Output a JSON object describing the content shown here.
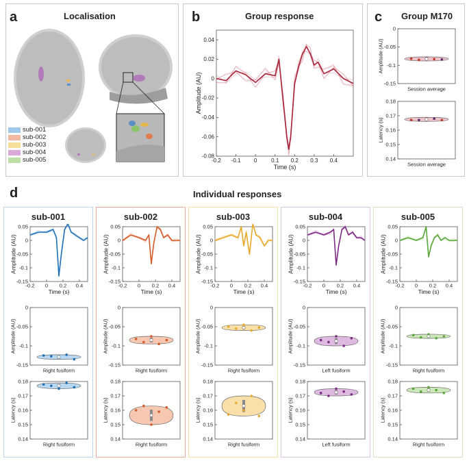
{
  "panels": {
    "a": {
      "letter": "a",
      "title": "Localisation"
    },
    "b": {
      "letter": "b",
      "title": "Group response"
    },
    "c": {
      "letter": "c",
      "title": "Group M170"
    },
    "d": {
      "letter": "d",
      "title": "Individual responses"
    }
  },
  "legend": [
    {
      "label": "sub-001",
      "color": "#9fc8ea"
    },
    {
      "label": "sub-002",
      "color": "#f2b9a2"
    },
    {
      "label": "sub-003",
      "color": "#f5df9a"
    },
    {
      "label": "sub-004",
      "color": "#d8a9d9"
    },
    {
      "label": "sub-005",
      "color": "#bde0a6"
    }
  ],
  "chart_data": [
    {
      "id": "group-response",
      "type": "line",
      "title": "Group response",
      "xlabel": "Time (s)",
      "ylabel": "Amplitude (AU)",
      "xlim": [
        -0.2,
        0.5
      ],
      "ylim": [
        -0.08,
        0.05
      ],
      "xticks": [
        "-0.2",
        "-0.1",
        "0",
        "0.1",
        "0.2",
        "0.3",
        "0.4"
      ],
      "yticks": [
        "-0.08",
        "-0.06",
        "-0.04",
        "-0.02",
        "0",
        "0.02",
        "0.04"
      ],
      "color": "#a8243a",
      "x": [
        -0.2,
        -0.15,
        -0.1,
        -0.05,
        0,
        0.05,
        0.1,
        0.12,
        0.14,
        0.16,
        0.17,
        0.18,
        0.2,
        0.22,
        0.24,
        0.26,
        0.28,
        0.3,
        0.32,
        0.35,
        0.4,
        0.45,
        0.5
      ],
      "values": [
        0.0,
        -0.002,
        0.008,
        0.004,
        -0.004,
        0.005,
        0.003,
        0.02,
        -0.02,
        -0.06,
        -0.073,
        -0.06,
        -0.005,
        0.012,
        0.025,
        0.033,
        0.026,
        0.014,
        0.017,
        0.005,
        0.01,
        0.0,
        -0.005
      ]
    },
    {
      "id": "group-amplitude",
      "type": "scatter",
      "xlabel": "Session average",
      "ylabel": "Amplitude (AU)",
      "ylim": [
        -0.15,
        0
      ],
      "yticks": [
        "0",
        "-0.05",
        "-0.1",
        "-0.15"
      ],
      "points": [
        -0.082,
        -0.085,
        -0.08,
        -0.083,
        -0.084
      ],
      "point_colors": [
        "#c0392b",
        "#c0392b",
        "#5b2c6f",
        "#c0392b",
        "#5b2c6f"
      ]
    },
    {
      "id": "group-latency",
      "type": "scatter",
      "xlabel": "Session average",
      "ylabel": "Latency (s)",
      "ylim": [
        0.14,
        0.18
      ],
      "yticks": [
        "0.18",
        "0.17",
        "0.16",
        "0.15",
        "0.14"
      ],
      "points": [
        0.167,
        0.167,
        0.168,
        0.168,
        0.167
      ],
      "point_colors": [
        "#c0392b",
        "#5b2c6f",
        "#c0392b",
        "#5b2c6f",
        "#c0392b"
      ]
    }
  ],
  "subjects": [
    {
      "name": "sub-001",
      "color": "#1f6fb5",
      "light": "#a6cdec",
      "border": "#bcd8f0",
      "region": "Right fusiform",
      "x": [
        -0.2,
        -0.1,
        0,
        0.08,
        0.12,
        0.15,
        0.18,
        0.22,
        0.26,
        0.3,
        0.35,
        0.4,
        0.45,
        0.5
      ],
      "values": [
        0.02,
        0.03,
        0.03,
        0.04,
        0.01,
        -0.13,
        -0.05,
        0.04,
        0.06,
        0.03,
        0.02,
        0.01,
        0.0,
        0.01
      ],
      "amp_ylim": [
        -0.15,
        0
      ],
      "amp_yticks": [
        "0",
        "-0.05",
        "-0.1",
        "-0.15"
      ],
      "amp_points": [
        -0.125,
        -0.127,
        -0.13,
        -0.123,
        -0.135
      ],
      "lat_points": [
        0.178,
        0.177,
        0.175,
        0.179,
        0.176
      ]
    },
    {
      "name": "sub-002",
      "color": "#d35b2a",
      "light": "#f4b99d",
      "border": "#f2a899",
      "region": "Right fusiform",
      "x": [
        -0.2,
        -0.1,
        0,
        0.08,
        0.12,
        0.15,
        0.18,
        0.22,
        0.26,
        0.3,
        0.35,
        0.4,
        0.45,
        0.5
      ],
      "values": [
        0.0,
        0.02,
        0.01,
        0.0,
        0.02,
        -0.085,
        -0.01,
        0.05,
        0.04,
        0.01,
        0.02,
        0.0,
        0.0,
        0.0
      ],
      "amp_ylim": [
        -0.15,
        0
      ],
      "amp_yticks": [
        "0",
        "-0.05",
        "-0.1",
        "-0.15"
      ],
      "amp_points": [
        -0.082,
        -0.09,
        -0.075,
        -0.095,
        -0.085
      ],
      "lat_points": [
        0.16,
        0.163,
        0.15,
        0.159,
        0.162
      ]
    },
    {
      "name": "sub-003",
      "color": "#e8a92b",
      "light": "#f7d895",
      "border": "#f3dfa8",
      "region": "Right fusiform",
      "x": [
        -0.2,
        -0.1,
        0,
        0.08,
        0.12,
        0.15,
        0.18,
        0.22,
        0.26,
        0.3,
        0.35,
        0.4,
        0.45,
        0.5
      ],
      "values": [
        0.0,
        0.01,
        0.02,
        0.01,
        0.05,
        -0.02,
        0.03,
        -0.05,
        0.06,
        0.02,
        0.01,
        -0.02,
        0.0,
        0.0
      ],
      "amp_ylim": [
        -0.15,
        0
      ],
      "amp_yticks": [
        "0",
        "-0.05",
        "-0.1",
        "-0.15"
      ],
      "amp_points": [
        -0.05,
        -0.055,
        -0.045,
        -0.06,
        -0.052
      ],
      "lat_points": [
        0.157,
        0.165,
        0.16,
        0.17,
        0.156
      ]
    },
    {
      "name": "sub-004",
      "color": "#7b2b83",
      "light": "#d6a8d8",
      "border": "#ddc4e3",
      "region": "Left fusiform",
      "x": [
        -0.2,
        -0.1,
        0,
        0.08,
        0.12,
        0.15,
        0.18,
        0.22,
        0.26,
        0.3,
        0.35,
        0.4,
        0.45,
        0.5
      ],
      "values": [
        0.02,
        0.03,
        0.02,
        0.03,
        0.04,
        -0.09,
        -0.02,
        0.04,
        0.05,
        0.02,
        0.03,
        0.01,
        0.01,
        0.0
      ],
      "amp_ylim": [
        -0.15,
        0
      ],
      "amp_yticks": [
        "0",
        "-0.05",
        "-0.1",
        "-0.15"
      ],
      "amp_points": [
        -0.085,
        -0.09,
        -0.075,
        -0.1,
        -0.08
      ],
      "lat_points": [
        0.172,
        0.17,
        0.175,
        0.173,
        0.171
      ]
    },
    {
      "name": "sub-005",
      "color": "#5aa63a",
      "light": "#bfe2a9",
      "border": "#cfe5c1",
      "region": "Right fusiform",
      "x": [
        -0.2,
        -0.1,
        0,
        0.08,
        0.12,
        0.15,
        0.18,
        0.22,
        0.26,
        0.3,
        0.35,
        0.4,
        0.45,
        0.5
      ],
      "values": [
        0.0,
        0.01,
        0.0,
        0.01,
        0.05,
        -0.06,
        -0.02,
        0.01,
        0.02,
        0.0,
        0.01,
        0.0,
        0.0,
        0.0
      ],
      "amp_ylim": [
        -0.15,
        0
      ],
      "amp_yticks": [
        "0",
        "-0.05",
        "-0.1",
        "-0.15"
      ],
      "amp_points": [
        -0.072,
        -0.078,
        -0.07,
        -0.08,
        -0.075
      ],
      "lat_points": [
        0.175,
        0.173,
        0.176,
        0.174,
        0.172
      ]
    }
  ],
  "subject_axes": {
    "resp_ylabel": "Amplitude (AU)",
    "resp_xlabel": "Time (s)",
    "resp_xticks": [
      "-0.2",
      "0",
      "0.2",
      "0.4"
    ],
    "resp_yticks": [
      "0.05",
      "0",
      "-0.05",
      "-0.1",
      "-0.15"
    ],
    "amp_ylabel": "Amplitude (AU)",
    "lat_ylabel": "Latency (s)",
    "lat_ylim": [
      0.14,
      0.18
    ],
    "lat_yticks": [
      "0.18",
      "0.17",
      "0.16",
      "0.15",
      "0.14"
    ]
  }
}
